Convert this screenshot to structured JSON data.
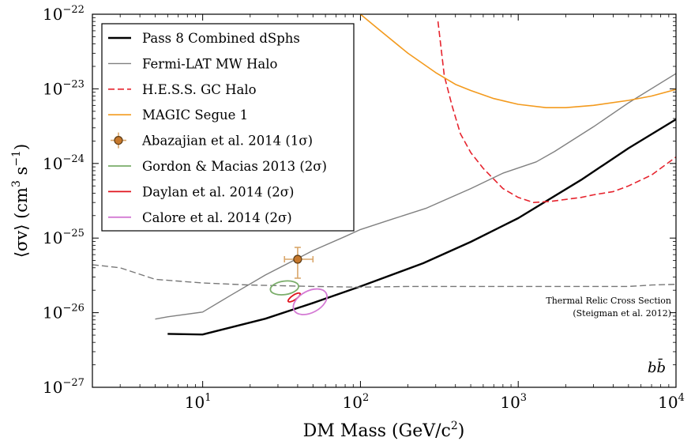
{
  "chart_data": {
    "type": "line",
    "xlabel_text": "DM Mass (GeV/c",
    "xlabel_sup": "2",
    "xlabel_end": ")",
    "ylabel_text": "⟨σv⟩ (cm",
    "ylabel_sup1": "3",
    "ylabel_mid": " s",
    "ylabel_sup2": "−1",
    "ylabel_end": ")",
    "xscale": "log",
    "yscale": "log",
    "xlim": [
      2,
      10000
    ],
    "ylim": [
      1e-27,
      1e-22
    ],
    "x_ticks": [
      {
        "value": 10,
        "base": "10",
        "exp": "1"
      },
      {
        "value": 100,
        "base": "10",
        "exp": "2"
      },
      {
        "value": 1000,
        "base": "10",
        "exp": "3"
      },
      {
        "value": 10000,
        "base": "10",
        "exp": "4"
      }
    ],
    "y_ticks": [
      {
        "value": 1e-27,
        "base": "10",
        "exp": "−27"
      },
      {
        "value": 1e-26,
        "base": "10",
        "exp": "−26"
      },
      {
        "value": 1e-25,
        "base": "10",
        "exp": "−25"
      },
      {
        "value": 1e-24,
        "base": "10",
        "exp": "−24"
      },
      {
        "value": 1e-23,
        "base": "10",
        "exp": "−23"
      },
      {
        "value": 1e-22,
        "base": "10",
        "exp": "−22"
      }
    ],
    "channel_label": "bb̄",
    "legend_position": "top-left",
    "series": [
      {
        "name": "Pass 8 Combined dSphs",
        "color": "#000000",
        "dash": "solid",
        "width": 2.4,
        "x": [
          6,
          10,
          25,
          50,
          100,
          250,
          500,
          1000,
          2500,
          5000,
          10000
        ],
        "y": [
          5.2e-27,
          5.1e-27,
          8.3e-27,
          1.35e-26,
          2.25e-26,
          4.6e-26,
          8.9e-26,
          1.85e-25,
          6e-25,
          1.6e-24,
          3.9e-24
        ]
      },
      {
        "name": "Fermi-LAT MW Halo",
        "color": "#808080",
        "dash": "solid",
        "width": 1.4,
        "x": [
          5,
          6,
          10,
          15,
          25,
          50,
          80,
          100,
          160,
          260,
          500,
          800,
          1300,
          1700,
          3000,
          5000,
          10000
        ],
        "y": [
          8.2e-27,
          8.8e-27,
          1.02e-26,
          1.7e-26,
          3.2e-26,
          6.8e-26,
          1.05e-25,
          1.3e-25,
          1.8e-25,
          2.5e-25,
          4.6e-25,
          7.4e-25,
          1.05e-24,
          1.45e-24,
          3.1e-24,
          6.5e-24,
          1.6e-23
        ]
      },
      {
        "name": "H.E.S.S. GC Halo",
        "color": "#e6242e",
        "dash": "dashed",
        "width": 1.6,
        "x": [
          310,
          340,
          380,
          430,
          500,
          600,
          800,
          1000,
          1250,
          1600,
          2000,
          2500,
          3000,
          4000,
          5000,
          7000,
          10000
        ],
        "y": [
          8e-23,
          1.5e-23,
          6e-24,
          2.5e-24,
          1.4e-24,
          8.6e-25,
          4.6e-25,
          3.5e-25,
          3e-25,
          3.1e-25,
          3.3e-25,
          3.5e-25,
          3.8e-25,
          4.2e-25,
          5e-25,
          7e-25,
          1.22e-24
        ]
      },
      {
        "name": "MAGIC Segue 1",
        "color": "#f39a1d",
        "dash": "solid",
        "width": 1.6,
        "x": [
          100,
          130,
          200,
          300,
          400,
          500,
          700,
          1000,
          1500,
          2000,
          3000,
          5000,
          7000,
          10000
        ],
        "y": [
          1e-22,
          6.3e-23,
          3e-23,
          1.65e-23,
          1.15e-23,
          9.5e-24,
          7.4e-24,
          6.2e-24,
          5.6e-24,
          5.6e-24,
          6e-24,
          7e-24,
          8e-24,
          9.8e-24
        ]
      },
      {
        "name": "Thermal Relic Cross Section",
        "color": "#777777",
        "dash": "dashed",
        "width": 1.4,
        "legend": false,
        "x": [
          2,
          3,
          5,
          10,
          20,
          50,
          100,
          200,
          500,
          1000,
          2000,
          5000,
          7000,
          10000
        ],
        "y": [
          4.4e-26,
          4e-26,
          2.8e-26,
          2.5e-26,
          2.35e-26,
          2.25e-26,
          2.2e-26,
          2.25e-26,
          2.25e-26,
          2.25e-26,
          2.25e-26,
          2.25e-26,
          2.35e-26,
          2.4e-26
        ]
      }
    ],
    "point": {
      "name": "Abazajian et al. 2014 (1σ)",
      "x": 40,
      "y": 5.2e-26,
      "x_err": [
        33,
        50
      ],
      "y_err": [
        2.9e-26,
        7.5e-26
      ],
      "color": "#c6782c",
      "edge": "#5a3a14",
      "errcolor": "#d9a66a"
    },
    "contours": [
      {
        "name": "Gordon & Macias 2013 (2σ)",
        "color": "#7aad6a",
        "cx": 33,
        "cy": 2.15e-26,
        "rx_dex": 0.09,
        "ry_dex": 0.09,
        "tilt": 8
      },
      {
        "name": "Daylan et al. 2014 (2σ)",
        "color": "#e0141e",
        "cx": 38,
        "cy": 1.6e-26,
        "rx_dex": 0.045,
        "ry_dex": 0.032,
        "tilt": 34
      },
      {
        "name": "Calore et al. 2014 (2σ)",
        "color": "#d47ad4",
        "cx": 48,
        "cy": 1.4e-26,
        "rx_dex": 0.115,
        "ry_dex": 0.145,
        "tilt": 28
      }
    ],
    "annotation": {
      "line1": "Thermal Relic Cross Section",
      "line2": "(Steigman et al. 2012)",
      "color": "#777777"
    }
  }
}
